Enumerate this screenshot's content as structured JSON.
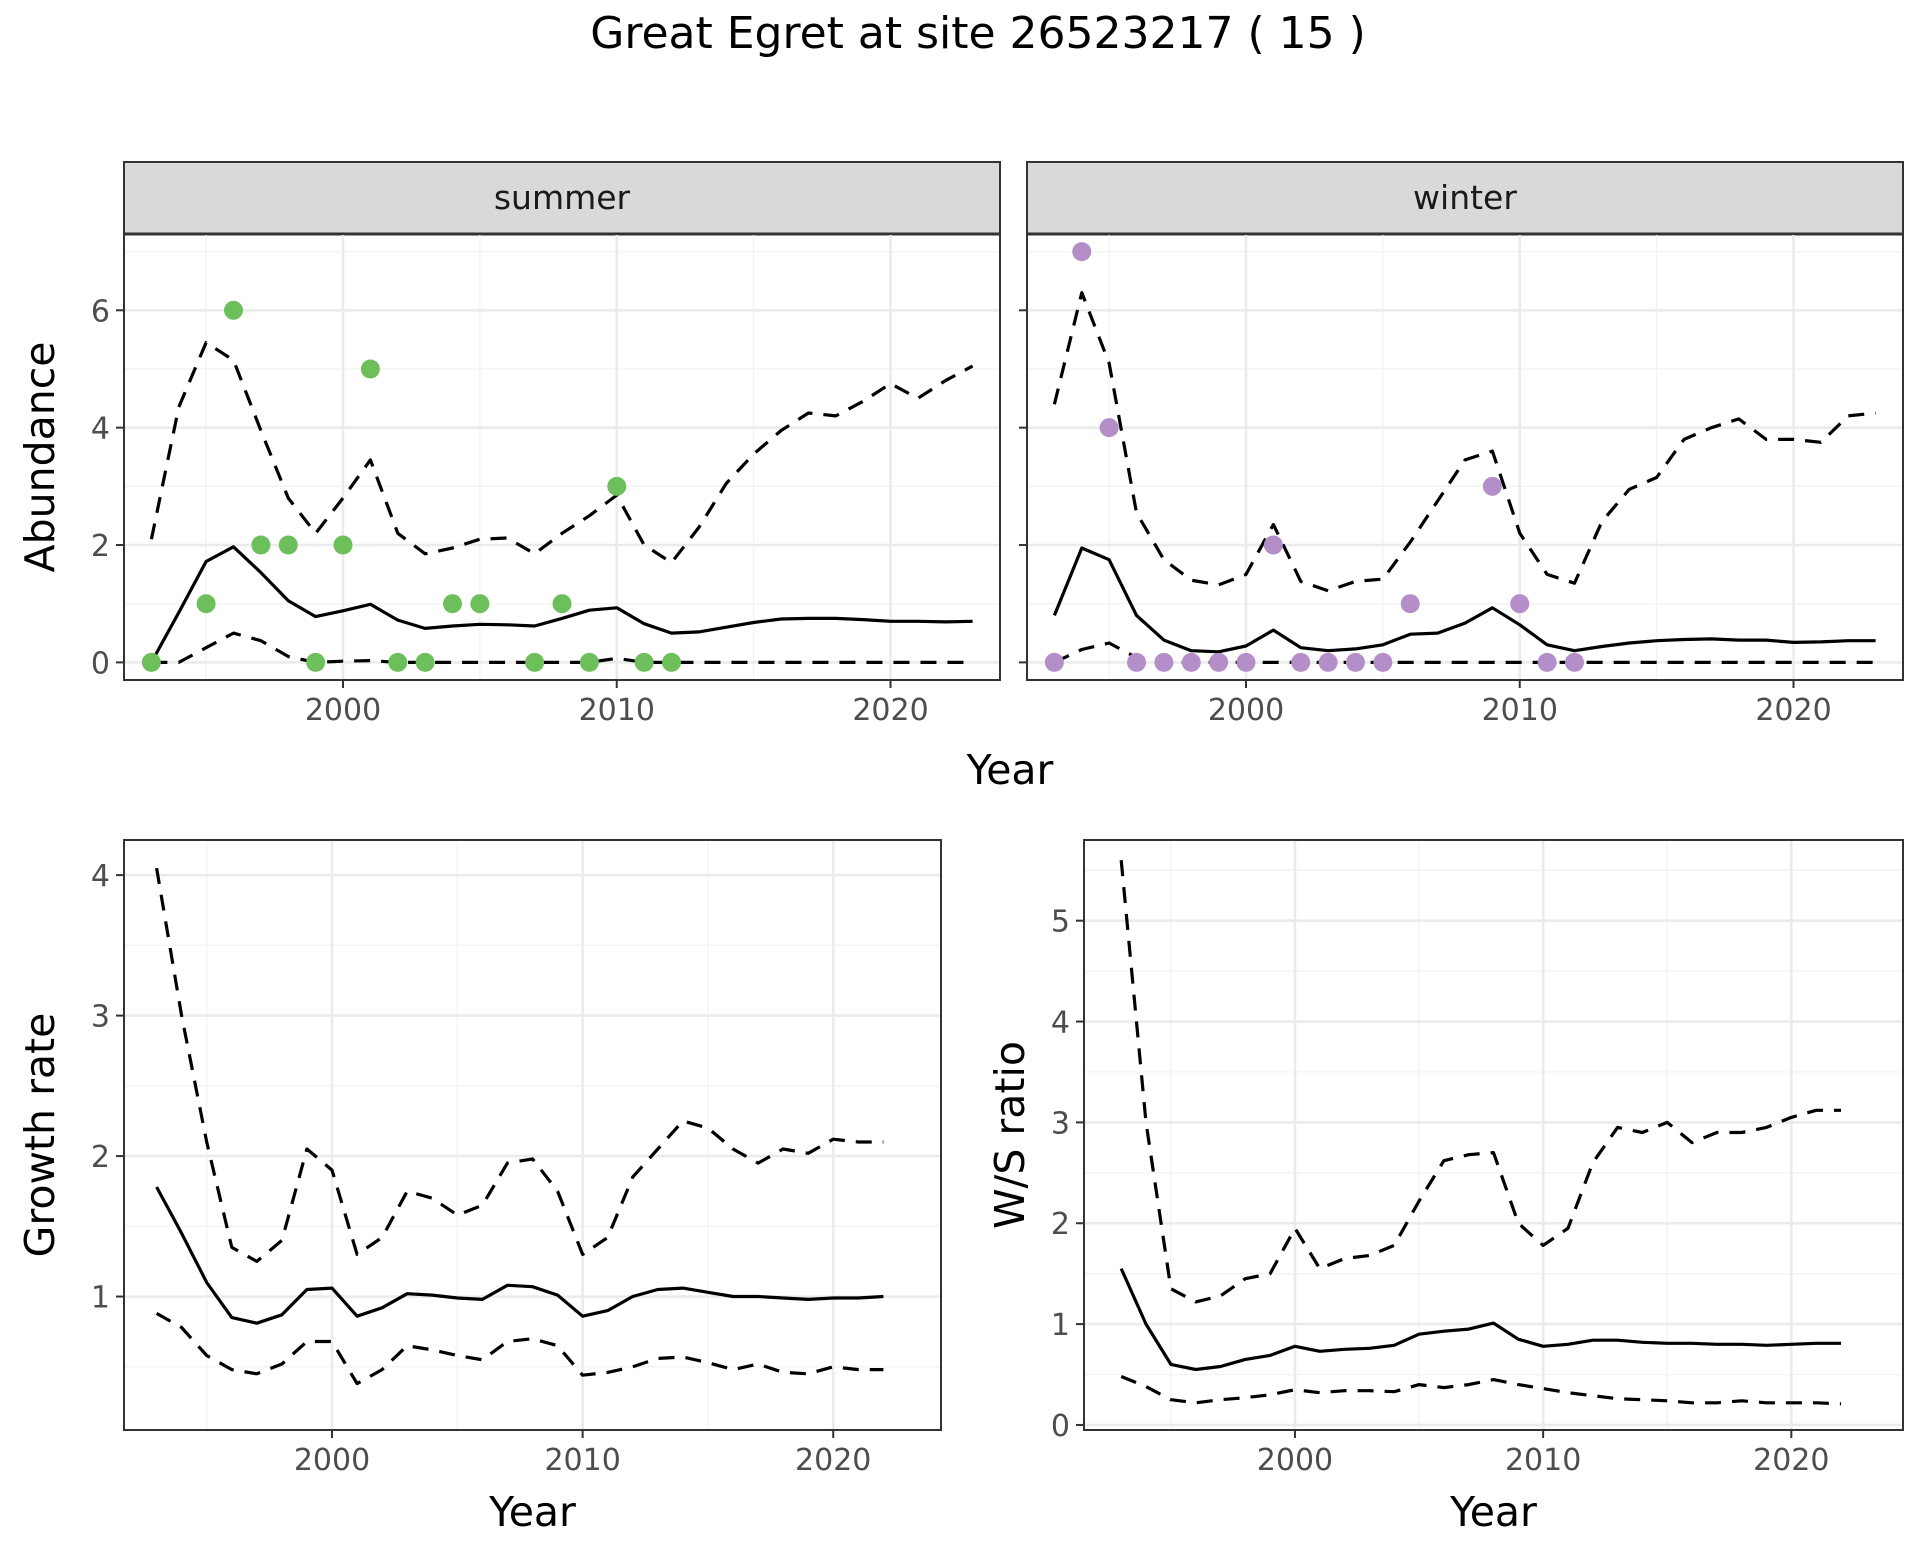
{
  "figure": {
    "title": "Great Egret at site 26523217 ( 15 )"
  },
  "colors": {
    "summer_points": "#6dbf5b",
    "winter_points": "#b48ec8",
    "lines": "#000000"
  },
  "chart_data": [
    {
      "id": "abundance-summer",
      "type": "line",
      "facet": "summer",
      "xlabel": "Year",
      "ylabel": "Abundance",
      "xlim": [
        1992,
        2024
      ],
      "ylim": [
        -0.3,
        7.3
      ],
      "xticks": [
        2000,
        2010,
        2020
      ],
      "yticks": [
        0,
        2,
        4,
        6
      ],
      "x": [
        1993,
        1994,
        1995,
        1996,
        1997,
        1998,
        1999,
        2000,
        2001,
        2002,
        2003,
        2004,
        2005,
        2006,
        2007,
        2008,
        2009,
        2010,
        2011,
        2012,
        2013,
        2014,
        2015,
        2016,
        2017,
        2018,
        2019,
        2020,
        2021,
        2022,
        2023
      ],
      "series": [
        {
          "role": "mean",
          "style": "solid",
          "values": [
            0.0,
            0.85,
            1.72,
            1.97,
            1.53,
            1.05,
            0.78,
            0.88,
            0.99,
            0.72,
            0.58,
            0.62,
            0.65,
            0.64,
            0.62,
            0.75,
            0.89,
            0.93,
            0.66,
            0.5,
            0.52,
            0.6,
            0.68,
            0.74,
            0.75,
            0.75,
            0.73,
            0.7,
            0.7,
            0.69,
            0.7
          ]
        },
        {
          "role": "upper",
          "style": "dashed",
          "values": [
            2.1,
            4.35,
            5.45,
            5.15,
            3.95,
            2.8,
            2.2,
            2.8,
            3.45,
            2.2,
            1.85,
            1.95,
            2.1,
            2.12,
            1.85,
            2.2,
            2.5,
            2.85,
            2.0,
            1.7,
            2.3,
            3.05,
            3.55,
            3.95,
            4.25,
            4.2,
            4.45,
            4.75,
            4.5,
            4.8,
            5.05
          ]
        },
        {
          "role": "lower",
          "style": "dashed",
          "values": [
            0.0,
            0.0,
            0.25,
            0.5,
            0.37,
            0.1,
            0.0,
            0.02,
            0.03,
            0.0,
            0.0,
            0.0,
            0.0,
            0.0,
            0.0,
            0.0,
            0.0,
            0.07,
            0.0,
            0.0,
            0.0,
            0.0,
            0.0,
            0.0,
            0.0,
            0.0,
            0.0,
            0.0,
            0.0,
            0.0,
            0.0
          ]
        }
      ],
      "points": [
        [
          1993,
          0
        ],
        [
          1995,
          1
        ],
        [
          1996,
          6
        ],
        [
          1997,
          2
        ],
        [
          1998,
          2
        ],
        [
          1999,
          0
        ],
        [
          2000,
          2
        ],
        [
          2001,
          5
        ],
        [
          2002,
          0
        ],
        [
          2003,
          0
        ],
        [
          2004,
          1
        ],
        [
          2005,
          1
        ],
        [
          2007,
          0
        ],
        [
          2008,
          1
        ],
        [
          2009,
          0
        ],
        [
          2010,
          3
        ],
        [
          2011,
          0
        ],
        [
          2012,
          0
        ]
      ]
    },
    {
      "id": "abundance-winter",
      "type": "line",
      "facet": "winter",
      "xlabel": "Year",
      "ylabel": "Abundance",
      "xlim": [
        1992,
        2024
      ],
      "ylim": [
        -0.3,
        7.3
      ],
      "xticks": [
        2000,
        2010,
        2020
      ],
      "yticks": [
        0,
        2,
        4,
        6
      ],
      "x": [
        1993,
        1994,
        1995,
        1996,
        1997,
        1998,
        1999,
        2000,
        2001,
        2002,
        2003,
        2004,
        2005,
        2006,
        2007,
        2008,
        2009,
        2010,
        2011,
        2012,
        2013,
        2014,
        2015,
        2016,
        2017,
        2018,
        2019,
        2020,
        2021,
        2022,
        2023
      ],
      "series": [
        {
          "role": "mean",
          "style": "solid",
          "values": [
            0.8,
            1.95,
            1.75,
            0.8,
            0.38,
            0.2,
            0.18,
            0.28,
            0.55,
            0.25,
            0.2,
            0.23,
            0.3,
            0.48,
            0.5,
            0.67,
            0.93,
            0.64,
            0.3,
            0.2,
            0.27,
            0.33,
            0.37,
            0.39,
            0.4,
            0.38,
            0.38,
            0.34,
            0.35,
            0.37,
            0.37
          ]
        },
        {
          "role": "upper",
          "style": "dashed",
          "values": [
            4.4,
            6.3,
            5.1,
            2.55,
            1.75,
            1.4,
            1.32,
            1.5,
            2.35,
            1.38,
            1.22,
            1.38,
            1.42,
            2.05,
            2.75,
            3.45,
            3.6,
            2.2,
            1.5,
            1.35,
            2.4,
            2.95,
            3.15,
            3.8,
            4.0,
            4.15,
            3.8,
            3.8,
            3.75,
            4.2,
            4.25
          ]
        },
        {
          "role": "lower",
          "style": "dashed",
          "values": [
            0.0,
            0.22,
            0.33,
            0.08,
            0.0,
            0.0,
            0.0,
            0.0,
            0.0,
            0.0,
            0.0,
            0.0,
            0.0,
            0.0,
            0.0,
            0.0,
            0.0,
            0.0,
            0.0,
            0.0,
            0.0,
            0.0,
            0.0,
            0.0,
            0.0,
            0.0,
            0.0,
            0.0,
            0.0,
            0.0,
            0.0
          ]
        }
      ],
      "points": [
        [
          1993,
          0
        ],
        [
          1994,
          7
        ],
        [
          1995,
          4
        ],
        [
          1996,
          0
        ],
        [
          1997,
          0
        ],
        [
          1998,
          0
        ],
        [
          1999,
          0
        ],
        [
          2000,
          0
        ],
        [
          2001,
          2
        ],
        [
          2002,
          0
        ],
        [
          2003,
          0
        ],
        [
          2004,
          0
        ],
        [
          2005,
          0
        ],
        [
          2006,
          1
        ],
        [
          2009,
          3
        ],
        [
          2010,
          1
        ],
        [
          2011,
          0
        ],
        [
          2012,
          0
        ]
      ]
    },
    {
      "id": "growth-rate",
      "type": "line",
      "xlabel": "Year",
      "ylabel": "Growth rate",
      "xlim": [
        1991.7,
        2024.3
      ],
      "ylim": [
        0.05,
        4.25
      ],
      "xticks": [
        2000,
        2010,
        2020
      ],
      "yticks": [
        1,
        2,
        3,
        4
      ],
      "x": [
        1993,
        1994,
        1995,
        1996,
        1997,
        1998,
        1999,
        2000,
        2001,
        2002,
        2003,
        2004,
        2005,
        2006,
        2007,
        2008,
        2009,
        2010,
        2011,
        2012,
        2013,
        2014,
        2015,
        2016,
        2017,
        2018,
        2019,
        2020,
        2021,
        2022
      ],
      "series": [
        {
          "role": "mean",
          "style": "solid",
          "values": [
            1.78,
            1.45,
            1.1,
            0.85,
            0.81,
            0.87,
            1.05,
            1.06,
            0.86,
            0.92,
            1.02,
            1.01,
            0.99,
            0.98,
            1.08,
            1.07,
            1.01,
            0.86,
            0.9,
            1.0,
            1.05,
            1.06,
            1.03,
            1.0,
            1.0,
            0.99,
            0.98,
            0.99,
            0.99,
            1.0
          ]
        },
        {
          "role": "upper",
          "style": "dashed",
          "values": [
            4.05,
            3.0,
            2.1,
            1.35,
            1.25,
            1.4,
            2.05,
            1.9,
            1.3,
            1.42,
            1.75,
            1.7,
            1.58,
            1.65,
            1.95,
            1.98,
            1.75,
            1.3,
            1.42,
            1.85,
            2.05,
            2.25,
            2.2,
            2.05,
            1.95,
            2.05,
            2.02,
            2.12,
            2.1,
            2.1
          ]
        },
        {
          "role": "lower",
          "style": "dashed",
          "values": [
            0.88,
            0.78,
            0.58,
            0.48,
            0.45,
            0.52,
            0.68,
            0.68,
            0.38,
            0.48,
            0.65,
            0.62,
            0.58,
            0.55,
            0.68,
            0.7,
            0.65,
            0.44,
            0.46,
            0.5,
            0.56,
            0.57,
            0.53,
            0.48,
            0.52,
            0.46,
            0.45,
            0.5,
            0.48,
            0.48
          ]
        }
      ]
    },
    {
      "id": "ws-ratio",
      "type": "line",
      "xlabel": "Year",
      "ylabel": "W/S ratio",
      "xlim": [
        1991.5,
        2024.5
      ],
      "ylim": [
        -0.05,
        5.8
      ],
      "xticks": [
        2000,
        2010,
        2020
      ],
      "yticks": [
        0,
        1,
        2,
        3,
        4,
        5
      ],
      "x": [
        1993,
        1994,
        1995,
        1996,
        1997,
        1998,
        1999,
        2000,
        2001,
        2002,
        2003,
        2004,
        2005,
        2006,
        2007,
        2008,
        2009,
        2010,
        2011,
        2012,
        2013,
        2014,
        2015,
        2016,
        2017,
        2018,
        2019,
        2020,
        2021,
        2022
      ],
      "series": [
        {
          "role": "mean",
          "style": "solid",
          "values": [
            1.55,
            1.0,
            0.6,
            0.55,
            0.58,
            0.65,
            0.69,
            0.78,
            0.73,
            0.75,
            0.76,
            0.79,
            0.9,
            0.93,
            0.95,
            1.01,
            0.85,
            0.78,
            0.8,
            0.84,
            0.84,
            0.82,
            0.81,
            0.81,
            0.8,
            0.8,
            0.79,
            0.8,
            0.81,
            0.81
          ]
        },
        {
          "role": "upper",
          "style": "dashed",
          "values": [
            5.6,
            3.0,
            1.35,
            1.22,
            1.28,
            1.45,
            1.5,
            1.95,
            1.55,
            1.65,
            1.68,
            1.78,
            2.22,
            2.62,
            2.68,
            2.7,
            2.0,
            1.78,
            1.95,
            2.6,
            2.95,
            2.9,
            3.0,
            2.8,
            2.9,
            2.9,
            2.95,
            3.05,
            3.12,
            3.12
          ]
        },
        {
          "role": "lower",
          "style": "dashed",
          "values": [
            0.48,
            0.38,
            0.25,
            0.22,
            0.25,
            0.27,
            0.3,
            0.35,
            0.32,
            0.34,
            0.34,
            0.33,
            0.4,
            0.37,
            0.4,
            0.45,
            0.4,
            0.36,
            0.32,
            0.29,
            0.26,
            0.25,
            0.24,
            0.22,
            0.22,
            0.24,
            0.22,
            0.22,
            0.22,
            0.21
          ]
        }
      ]
    }
  ]
}
